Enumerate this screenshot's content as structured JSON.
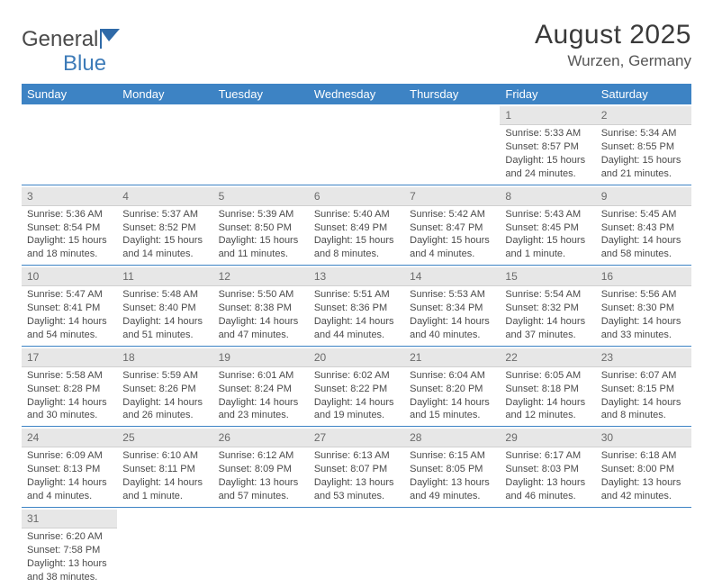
{
  "logo": {
    "word1": "General",
    "word2": "Blue"
  },
  "title": "August 2025",
  "location": "Wurzen, Germany",
  "colors": {
    "header_bg": "#3d83c4",
    "header_text": "#ffffff",
    "daynum_bg": "#e7e7e7",
    "rule": "#3d83c4",
    "text": "#4a4a4a",
    "logo_blue": "#3d7bb8"
  },
  "weekdays": [
    "Sunday",
    "Monday",
    "Tuesday",
    "Wednesday",
    "Thursday",
    "Friday",
    "Saturday"
  ],
  "weeks": [
    [
      null,
      null,
      null,
      null,
      null,
      {
        "n": "1",
        "sr": "Sunrise: 5:33 AM",
        "ss": "Sunset: 8:57 PM",
        "d1": "Daylight: 15 hours",
        "d2": "and 24 minutes."
      },
      {
        "n": "2",
        "sr": "Sunrise: 5:34 AM",
        "ss": "Sunset: 8:55 PM",
        "d1": "Daylight: 15 hours",
        "d2": "and 21 minutes."
      }
    ],
    [
      {
        "n": "3",
        "sr": "Sunrise: 5:36 AM",
        "ss": "Sunset: 8:54 PM",
        "d1": "Daylight: 15 hours",
        "d2": "and 18 minutes."
      },
      {
        "n": "4",
        "sr": "Sunrise: 5:37 AM",
        "ss": "Sunset: 8:52 PM",
        "d1": "Daylight: 15 hours",
        "d2": "and 14 minutes."
      },
      {
        "n": "5",
        "sr": "Sunrise: 5:39 AM",
        "ss": "Sunset: 8:50 PM",
        "d1": "Daylight: 15 hours",
        "d2": "and 11 minutes."
      },
      {
        "n": "6",
        "sr": "Sunrise: 5:40 AM",
        "ss": "Sunset: 8:49 PM",
        "d1": "Daylight: 15 hours",
        "d2": "and 8 minutes."
      },
      {
        "n": "7",
        "sr": "Sunrise: 5:42 AM",
        "ss": "Sunset: 8:47 PM",
        "d1": "Daylight: 15 hours",
        "d2": "and 4 minutes."
      },
      {
        "n": "8",
        "sr": "Sunrise: 5:43 AM",
        "ss": "Sunset: 8:45 PM",
        "d1": "Daylight: 15 hours",
        "d2": "and 1 minute."
      },
      {
        "n": "9",
        "sr": "Sunrise: 5:45 AM",
        "ss": "Sunset: 8:43 PM",
        "d1": "Daylight: 14 hours",
        "d2": "and 58 minutes."
      }
    ],
    [
      {
        "n": "10",
        "sr": "Sunrise: 5:47 AM",
        "ss": "Sunset: 8:41 PM",
        "d1": "Daylight: 14 hours",
        "d2": "and 54 minutes."
      },
      {
        "n": "11",
        "sr": "Sunrise: 5:48 AM",
        "ss": "Sunset: 8:40 PM",
        "d1": "Daylight: 14 hours",
        "d2": "and 51 minutes."
      },
      {
        "n": "12",
        "sr": "Sunrise: 5:50 AM",
        "ss": "Sunset: 8:38 PM",
        "d1": "Daylight: 14 hours",
        "d2": "and 47 minutes."
      },
      {
        "n": "13",
        "sr": "Sunrise: 5:51 AM",
        "ss": "Sunset: 8:36 PM",
        "d1": "Daylight: 14 hours",
        "d2": "and 44 minutes."
      },
      {
        "n": "14",
        "sr": "Sunrise: 5:53 AM",
        "ss": "Sunset: 8:34 PM",
        "d1": "Daylight: 14 hours",
        "d2": "and 40 minutes."
      },
      {
        "n": "15",
        "sr": "Sunrise: 5:54 AM",
        "ss": "Sunset: 8:32 PM",
        "d1": "Daylight: 14 hours",
        "d2": "and 37 minutes."
      },
      {
        "n": "16",
        "sr": "Sunrise: 5:56 AM",
        "ss": "Sunset: 8:30 PM",
        "d1": "Daylight: 14 hours",
        "d2": "and 33 minutes."
      }
    ],
    [
      {
        "n": "17",
        "sr": "Sunrise: 5:58 AM",
        "ss": "Sunset: 8:28 PM",
        "d1": "Daylight: 14 hours",
        "d2": "and 30 minutes."
      },
      {
        "n": "18",
        "sr": "Sunrise: 5:59 AM",
        "ss": "Sunset: 8:26 PM",
        "d1": "Daylight: 14 hours",
        "d2": "and 26 minutes."
      },
      {
        "n": "19",
        "sr": "Sunrise: 6:01 AM",
        "ss": "Sunset: 8:24 PM",
        "d1": "Daylight: 14 hours",
        "d2": "and 23 minutes."
      },
      {
        "n": "20",
        "sr": "Sunrise: 6:02 AM",
        "ss": "Sunset: 8:22 PM",
        "d1": "Daylight: 14 hours",
        "d2": "and 19 minutes."
      },
      {
        "n": "21",
        "sr": "Sunrise: 6:04 AM",
        "ss": "Sunset: 8:20 PM",
        "d1": "Daylight: 14 hours",
        "d2": "and 15 minutes."
      },
      {
        "n": "22",
        "sr": "Sunrise: 6:05 AM",
        "ss": "Sunset: 8:18 PM",
        "d1": "Daylight: 14 hours",
        "d2": "and 12 minutes."
      },
      {
        "n": "23",
        "sr": "Sunrise: 6:07 AM",
        "ss": "Sunset: 8:15 PM",
        "d1": "Daylight: 14 hours",
        "d2": "and 8 minutes."
      }
    ],
    [
      {
        "n": "24",
        "sr": "Sunrise: 6:09 AM",
        "ss": "Sunset: 8:13 PM",
        "d1": "Daylight: 14 hours",
        "d2": "and 4 minutes."
      },
      {
        "n": "25",
        "sr": "Sunrise: 6:10 AM",
        "ss": "Sunset: 8:11 PM",
        "d1": "Daylight: 14 hours",
        "d2": "and 1 minute."
      },
      {
        "n": "26",
        "sr": "Sunrise: 6:12 AM",
        "ss": "Sunset: 8:09 PM",
        "d1": "Daylight: 13 hours",
        "d2": "and 57 minutes."
      },
      {
        "n": "27",
        "sr": "Sunrise: 6:13 AM",
        "ss": "Sunset: 8:07 PM",
        "d1": "Daylight: 13 hours",
        "d2": "and 53 minutes."
      },
      {
        "n": "28",
        "sr": "Sunrise: 6:15 AM",
        "ss": "Sunset: 8:05 PM",
        "d1": "Daylight: 13 hours",
        "d2": "and 49 minutes."
      },
      {
        "n": "29",
        "sr": "Sunrise: 6:17 AM",
        "ss": "Sunset: 8:03 PM",
        "d1": "Daylight: 13 hours",
        "d2": "and 46 minutes."
      },
      {
        "n": "30",
        "sr": "Sunrise: 6:18 AM",
        "ss": "Sunset: 8:00 PM",
        "d1": "Daylight: 13 hours",
        "d2": "and 42 minutes."
      }
    ],
    [
      {
        "n": "31",
        "sr": "Sunrise: 6:20 AM",
        "ss": "Sunset: 7:58 PM",
        "d1": "Daylight: 13 hours",
        "d2": "and 38 minutes."
      },
      null,
      null,
      null,
      null,
      null,
      null
    ]
  ]
}
